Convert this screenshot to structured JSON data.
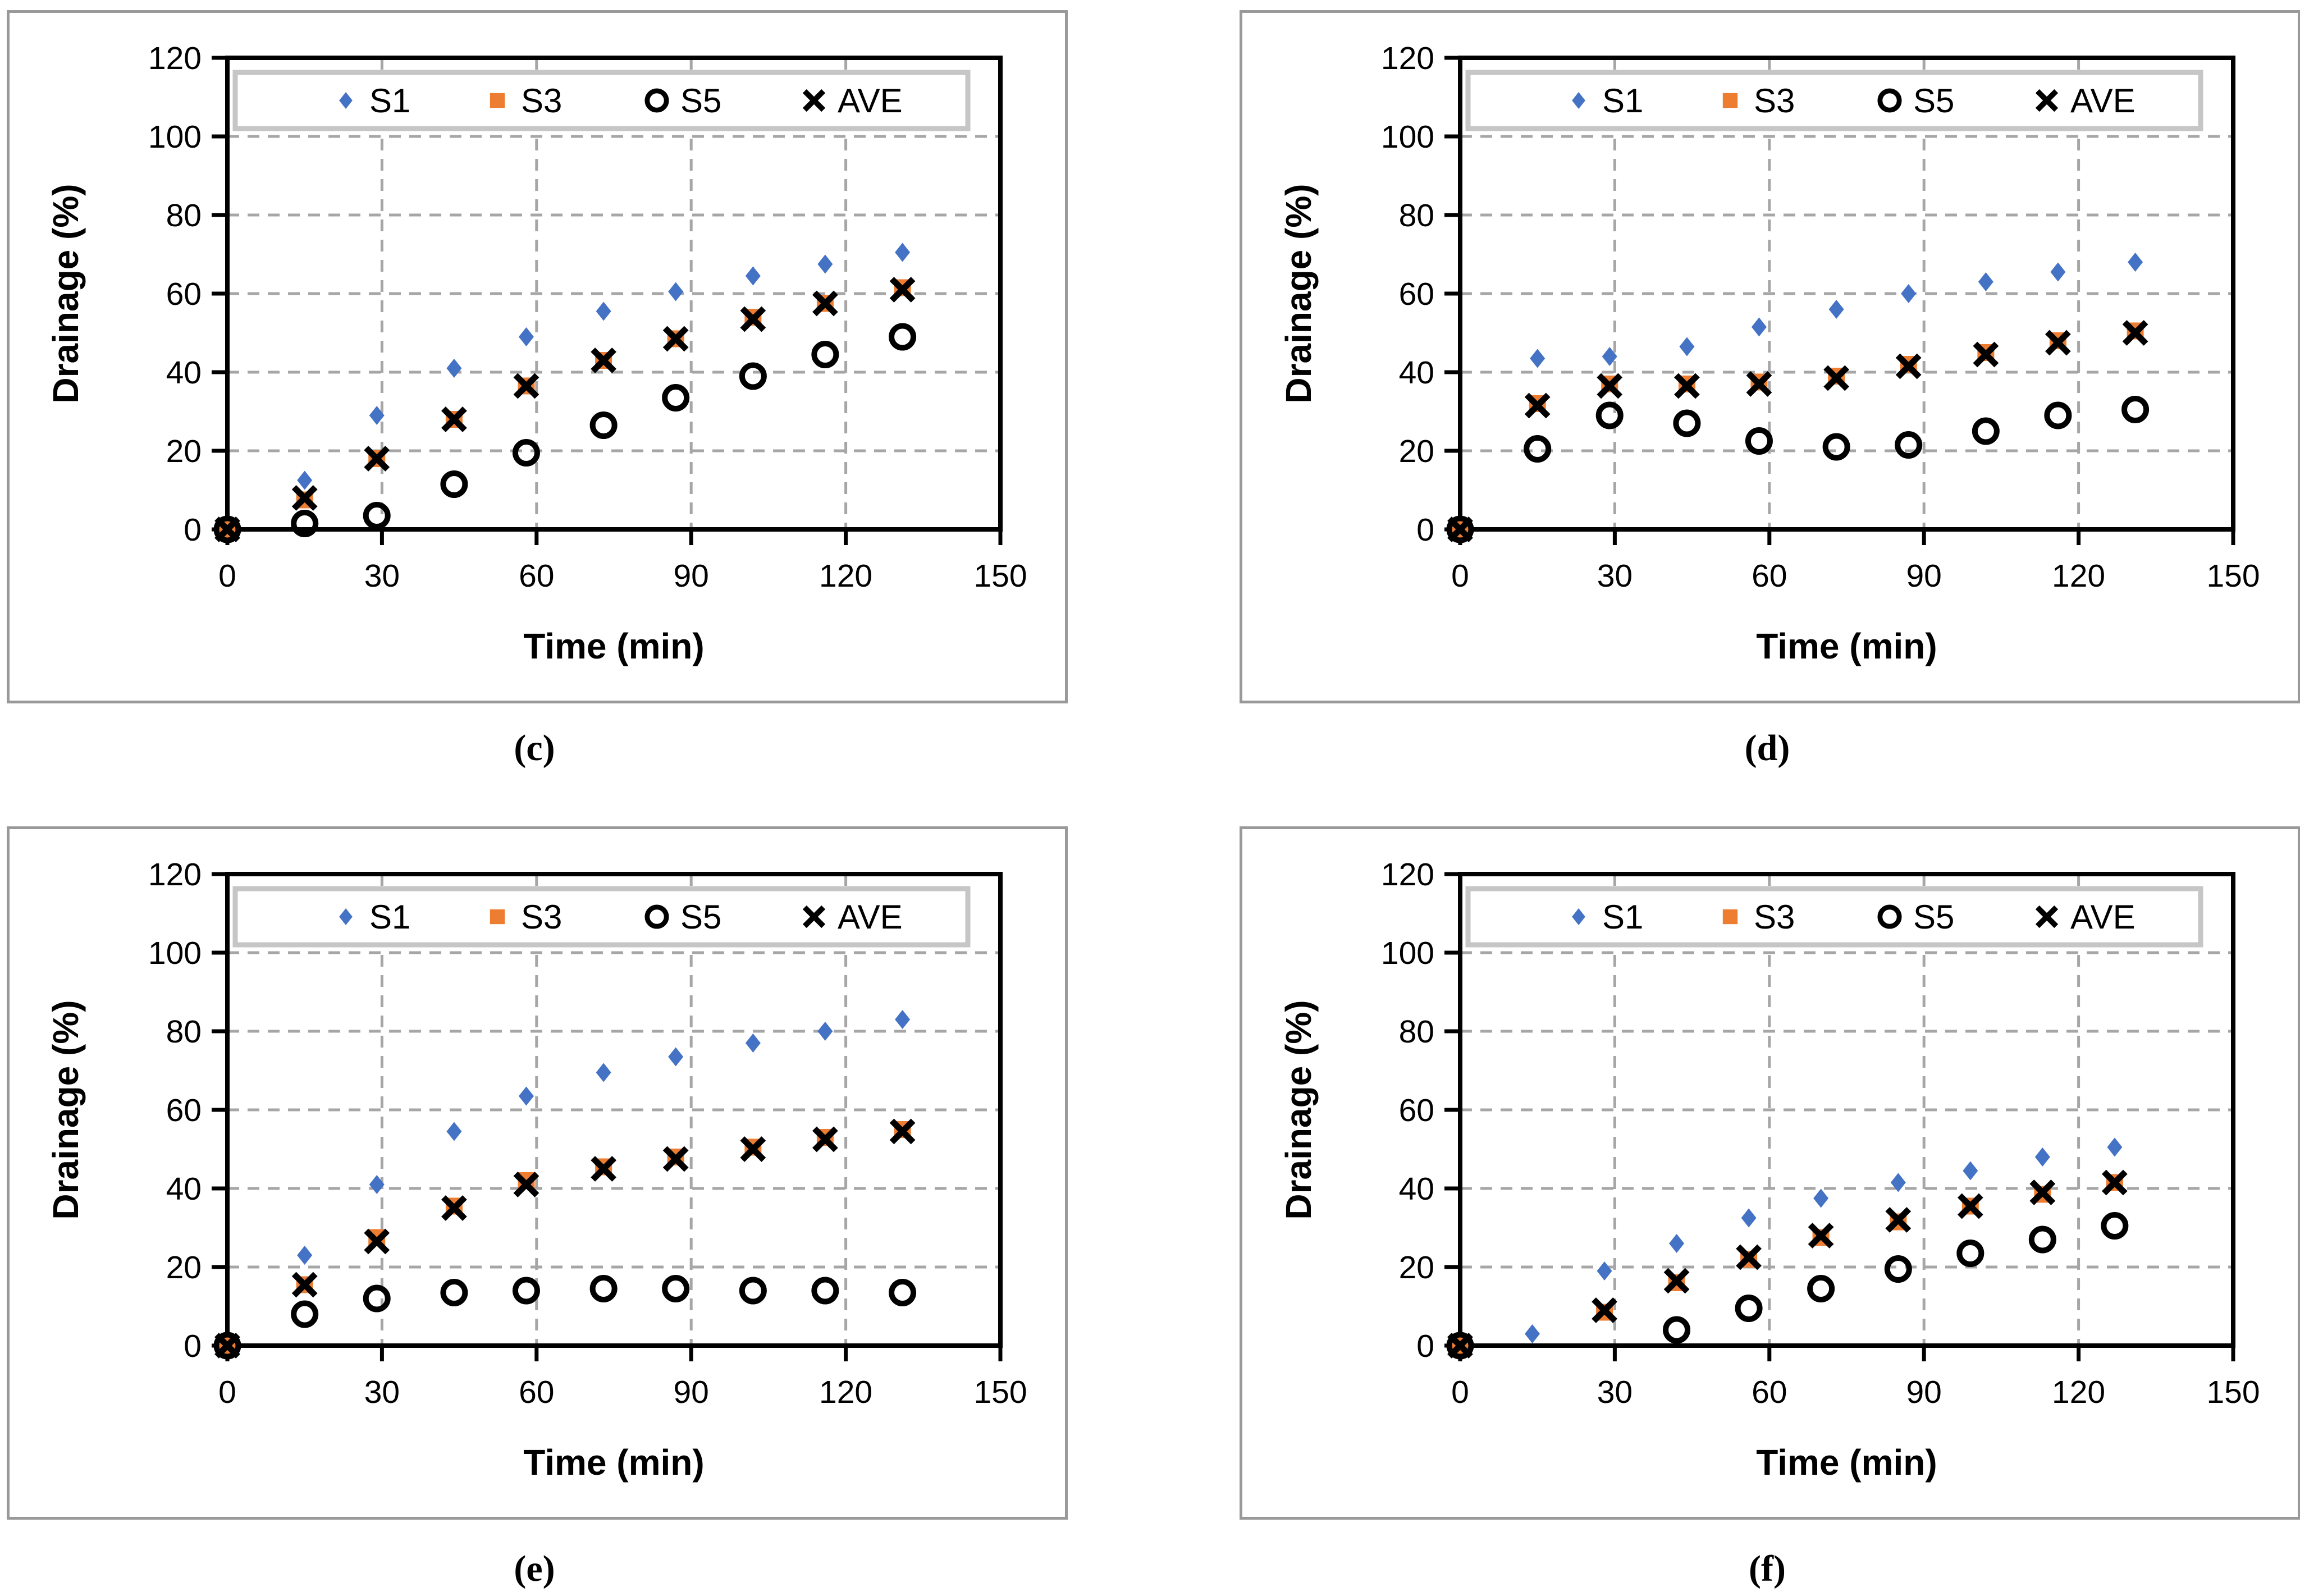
{
  "figure": {
    "xlabel": "Time (min)",
    "ylabel": "Drainage (%)",
    "style": {
      "series_blue": "#4472C4",
      "series_orange": "#ED7D31",
      "series_black": "#000000",
      "grid_color": "#A6A6A6",
      "frame_color": "#000000",
      "panel_border_color": "#999999",
      "legend_border_color": "#C6C6C6",
      "background": "#FFFFFF"
    },
    "legend_labels": [
      "S1",
      "S3",
      "S5",
      "AVE"
    ],
    "legend_marker_icons": [
      "diamond-icon",
      "square-icon",
      "circle-open-icon",
      "x-icon"
    ]
  },
  "chart_data": [
    {
      "id": "c",
      "caption": "(c)",
      "type": "scatter",
      "title": "",
      "xlabel": "Time (min)",
      "ylabel": "Drainage (%)",
      "xlim": [
        0,
        150
      ],
      "ylim": [
        0,
        120
      ],
      "xticks": [
        0,
        30,
        60,
        90,
        120,
        150
      ],
      "yticks": [
        0,
        20,
        40,
        60,
        80,
        100,
        120
      ],
      "grid": "dashed",
      "legend_position": "top-inside",
      "x": [
        0,
        15,
        29,
        44,
        58,
        73,
        87,
        102,
        116,
        131
      ],
      "series": [
        {
          "name": "S1",
          "marker": "diamond",
          "color": "#4472C4",
          "values": [
            0,
            12.5,
            29,
            41,
            49,
            55.5,
            60.5,
            64.5,
            67.5,
            70.5
          ]
        },
        {
          "name": "S3",
          "marker": "square",
          "color": "#ED7D31",
          "values": [
            0,
            7.5,
            18,
            28,
            36.5,
            43,
            48.5,
            54,
            57.5,
            61.5
          ]
        },
        {
          "name": "S5",
          "marker": "circle-open",
          "color": "#000000",
          "values": [
            0,
            1.5,
            3.5,
            11.5,
            19.5,
            26.5,
            33.5,
            39,
            44.5,
            49
          ]
        },
        {
          "name": "AVE",
          "marker": "x",
          "color": "#000000",
          "values": [
            0,
            8,
            18,
            28,
            36.5,
            43,
            48.5,
            53.5,
            57.5,
            61
          ]
        }
      ]
    },
    {
      "id": "d",
      "caption": "(d)",
      "type": "scatter",
      "title": "",
      "xlabel": "Time (min)",
      "ylabel": "Drainage (%)",
      "xlim": [
        0,
        150
      ],
      "ylim": [
        0,
        120
      ],
      "xticks": [
        0,
        30,
        60,
        90,
        120,
        150
      ],
      "yticks": [
        0,
        20,
        40,
        60,
        80,
        100,
        120
      ],
      "grid": "dashed",
      "legend_position": "top-inside",
      "x": [
        0,
        15,
        29,
        44,
        58,
        73,
        87,
        102,
        116,
        131
      ],
      "series": [
        {
          "name": "S1",
          "marker": "diamond",
          "color": "#4472C4",
          "values": [
            0,
            43.5,
            44,
            46.5,
            51.5,
            56,
            60,
            63,
            65.5,
            68
          ]
        },
        {
          "name": "S3",
          "marker": "square",
          "color": "#ED7D31",
          "values": [
            0,
            32,
            37,
            37,
            37.5,
            39,
            42,
            45,
            48,
            50.5
          ]
        },
        {
          "name": "S5",
          "marker": "circle-open",
          "color": "#000000",
          "values": [
            0,
            20.5,
            29,
            27,
            22.5,
            21,
            21.5,
            25,
            29,
            30.5
          ]
        },
        {
          "name": "AVE",
          "marker": "x",
          "color": "#000000",
          "values": [
            0,
            31.5,
            36.5,
            36.5,
            37,
            38.5,
            41.5,
            44.5,
            47.5,
            50
          ]
        }
      ]
    },
    {
      "id": "e",
      "caption": "(e)",
      "type": "scatter",
      "title": "",
      "xlabel": "Time (min)",
      "ylabel": "Drainage (%)",
      "xlim": [
        0,
        150
      ],
      "ylim": [
        0,
        120
      ],
      "xticks": [
        0,
        30,
        60,
        90,
        120,
        150
      ],
      "yticks": [
        0,
        20,
        40,
        60,
        80,
        100,
        120
      ],
      "grid": "dashed",
      "legend_position": "top-inside",
      "x": [
        0,
        15,
        29,
        44,
        58,
        73,
        87,
        102,
        116,
        131
      ],
      "series": [
        {
          "name": "S1",
          "marker": "diamond",
          "color": "#4472C4",
          "values": [
            0,
            23,
            41,
            54.5,
            63.5,
            69.5,
            73.5,
            77,
            80,
            83
          ]
        },
        {
          "name": "S3",
          "marker": "square",
          "color": "#ED7D31",
          "values": [
            0,
            15.5,
            27.5,
            35.5,
            42,
            45.5,
            48,
            50.5,
            53,
            55
          ]
        },
        {
          "name": "S5",
          "marker": "circle-open",
          "color": "#000000",
          "values": [
            0,
            8,
            12,
            13.5,
            14,
            14.5,
            14.5,
            14,
            14,
            13.5
          ]
        },
        {
          "name": "AVE",
          "marker": "x",
          "color": "#000000",
          "values": [
            0,
            15.5,
            26.5,
            35,
            41,
            45,
            47.5,
            50,
            52.5,
            54.5
          ]
        }
      ]
    },
    {
      "id": "f",
      "caption": "(f)",
      "type": "scatter",
      "title": "",
      "xlabel": "Time (min)",
      "ylabel": "Drainage (%)",
      "xlim": [
        0,
        150
      ],
      "ylim": [
        0,
        120
      ],
      "xticks": [
        0,
        30,
        60,
        90,
        120,
        150
      ],
      "yticks": [
        0,
        20,
        40,
        60,
        80,
        100,
        120
      ],
      "grid": "dashed",
      "legend_position": "top-inside",
      "x": [
        0,
        14,
        28,
        42,
        56,
        70,
        85,
        99,
        113,
        127
      ],
      "series": [
        {
          "name": "S1",
          "marker": "diamond",
          "color": "#4472C4",
          "values": [
            0,
            3,
            19,
            26,
            32.5,
            37.5,
            41.5,
            44.5,
            48,
            50.5
          ]
        },
        {
          "name": "S3",
          "marker": "square",
          "color": "#ED7D31",
          "values": [
            0,
            null,
            8.5,
            16,
            22,
            27.5,
            31.5,
            35.5,
            38.5,
            41.5
          ]
        },
        {
          "name": "S5",
          "marker": "circle-open",
          "color": "#000000",
          "values": [
            0,
            null,
            null,
            4,
            9.5,
            14.5,
            19.5,
            23.5,
            27,
            30.5
          ]
        },
        {
          "name": "AVE",
          "marker": "x",
          "color": "#000000",
          "values": [
            0,
            null,
            9,
            16.5,
            22.5,
            28,
            32,
            35.5,
            39,
            41.5
          ]
        }
      ]
    }
  ]
}
